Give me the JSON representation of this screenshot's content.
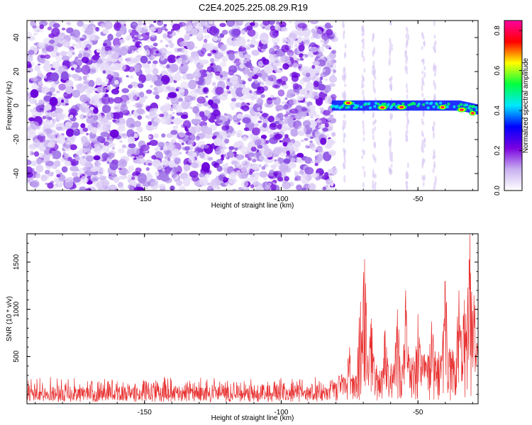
{
  "title": "C2E4.2025.225.08.29.R19",
  "chart_data": [
    {
      "type": "heatmap",
      "xlabel": "Height of straight line (km)",
      "ylabel": "Frequency (Hz)",
      "xlim": [
        -193,
        -28
      ],
      "ylim": [
        -50,
        50
      ],
      "x_ticks": [
        -150,
        -100,
        -50
      ],
      "y_ticks": [
        -40,
        -20,
        0,
        20,
        40
      ],
      "noise_region_x": [
        -193,
        -82
      ],
      "signal_band": {
        "x": [
          -82,
          -28
        ],
        "frequency_center": 0,
        "frequency_halfwidth": 3
      },
      "hotspots": [
        {
          "x": -75.5,
          "y": 1.5,
          "amplitude": 0.85
        },
        {
          "x": -63,
          "y": -1.2,
          "amplitude": 0.85
        },
        {
          "x": -56,
          "y": -1.0,
          "amplitude": 0.85
        },
        {
          "x": -41,
          "y": -1.0,
          "amplitude": 0.7
        },
        {
          "x": -34,
          "y": -2.5,
          "amplitude": 0.8
        },
        {
          "x": -30,
          "y": -4.5,
          "amplitude": 0.6
        }
      ],
      "colorbar": {
        "label": "Normalized spectral amplitude",
        "range": [
          0,
          0.85
        ],
        "ticks": [
          0.0,
          0.2,
          0.4,
          0.6,
          0.8
        ],
        "tick_labels": [
          "0.0",
          "0.2",
          "0.4",
          "0.6",
          "0.8"
        ],
        "colors": [
          "#ffffff",
          "#c8b0f0",
          "#7a00e0",
          "#0000ff",
          "#00e8ff",
          "#00ff40",
          "#ffff00",
          "#ff0000",
          "#ff00a0"
        ]
      }
    },
    {
      "type": "line",
      "xlabel": "Height of straight line (km)",
      "ylabel": "SNR (10 * v/v)",
      "xlim": [
        -193,
        -28
      ],
      "ylim": [
        0,
        1800
      ],
      "x_ticks": [
        -150,
        -100,
        -50
      ],
      "y_ticks": [
        500,
        1000,
        1500
      ],
      "color": "#e83030",
      "baseline": {
        "x_range": [
          -193,
          -82
        ],
        "typical_min": 20,
        "typical_max": 300
      },
      "peaks": [
        {
          "x": -75,
          "y": 600
        },
        {
          "x": -71,
          "y": 1080
        },
        {
          "x": -69.5,
          "y": 1530
        },
        {
          "x": -67,
          "y": 900
        },
        {
          "x": -62,
          "y": 780
        },
        {
          "x": -57.5,
          "y": 1000
        },
        {
          "x": -54.5,
          "y": 1200
        },
        {
          "x": -50,
          "y": 950
        },
        {
          "x": -45,
          "y": 870
        },
        {
          "x": -40,
          "y": 1300
        },
        {
          "x": -35,
          "y": 1200
        },
        {
          "x": -33,
          "y": 1100
        },
        {
          "x": -31,
          "y": 1790
        },
        {
          "x": -29.5,
          "y": 1150
        }
      ]
    }
  ]
}
